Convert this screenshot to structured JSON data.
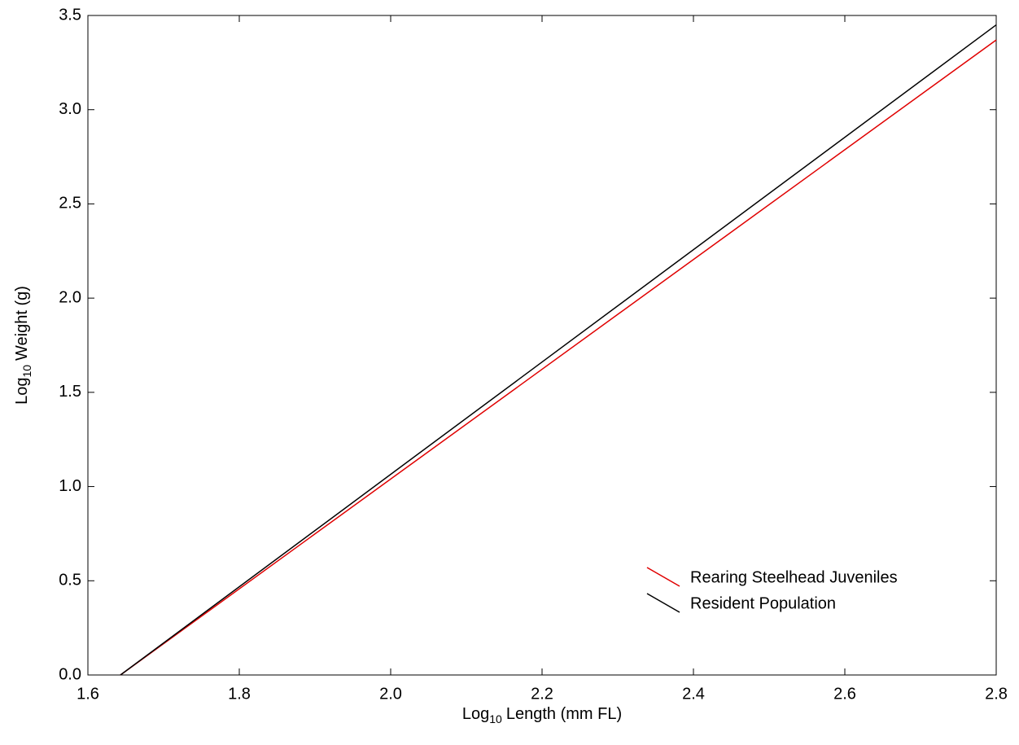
{
  "chart_data": {
    "type": "line",
    "x_label": {
      "prefix": "Log",
      "subscript": "10",
      "text": "Length (mm FL)"
    },
    "y_label": {
      "prefix": "Log",
      "subscript": "10",
      "text": "Weight (g)"
    },
    "x": [
      1.643,
      2.8
    ],
    "series": [
      {
        "name": "Rearing Steelhead Juveniles",
        "color": "#e00000",
        "values": [
          0,
          3.37
        ]
      },
      {
        "name": "Resident Population",
        "color": "#000000",
        "values": [
          0,
          3.45
        ]
      }
    ],
    "xlim": [
      1.6,
      2.8
    ],
    "xticks": [
      1.6,
      1.8,
      {
        "value": 2,
        "label": "2.0"
      },
      2.2,
      2.4,
      2.6,
      2.8
    ],
    "ylim": [
      0,
      3.5
    ],
    "yticks": [
      {
        "value": 0,
        "label": "0.0"
      },
      0.5,
      {
        "value": 1,
        "label": "1.0"
      },
      1.5,
      {
        "value": 2,
        "label": "2.0"
      },
      2.5,
      {
        "value": 3,
        "label": "3.0"
      },
      3.5
    ],
    "grid": false,
    "legend": "lower right"
  }
}
